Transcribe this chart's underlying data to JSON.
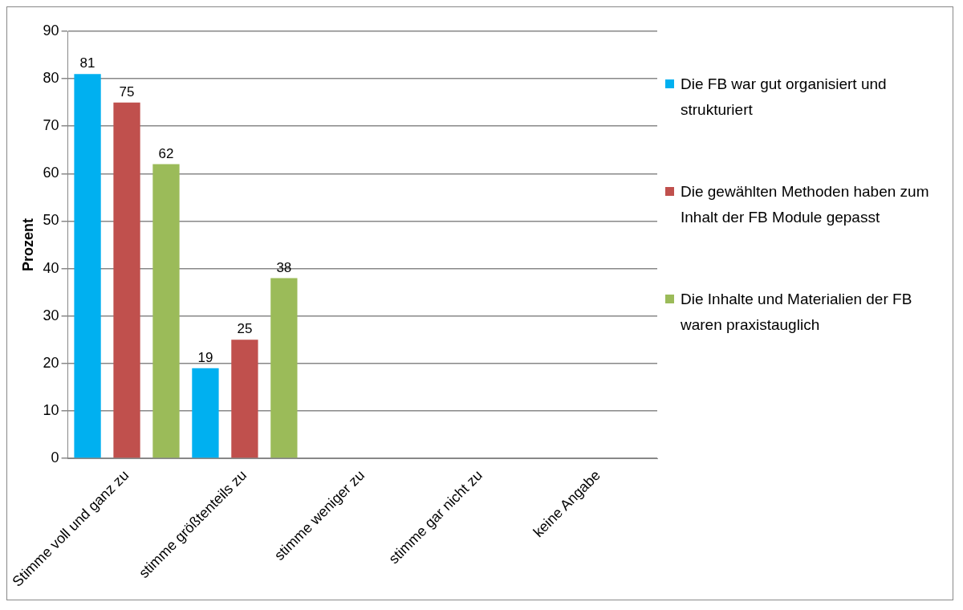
{
  "chart_data": {
    "type": "bar",
    "ylabel": "Prozent",
    "categories": [
      "Stimme voll und ganz zu",
      "stimme größtenteils zu",
      "stimme weniger zu",
      "stimme gar nicht zu",
      "keine Angabe"
    ],
    "series": [
      {
        "name": "Die FB war gut organisiert und strukturiert",
        "color": "#00b0f0",
        "values": [
          81,
          19,
          null,
          null,
          null
        ]
      },
      {
        "name": "Die gewählten Methoden haben zum Inhalt der FB Module gepasst",
        "color": "#c0504d",
        "values": [
          75,
          25,
          null,
          null,
          null
        ]
      },
      {
        "name": "Die Inhalte und Materialien der FB waren praxistauglich",
        "color": "#9bbb59",
        "values": [
          62,
          38,
          null,
          null,
          null
        ]
      }
    ],
    "ylim": [
      0,
      90
    ],
    "yticks": [
      0,
      10,
      20,
      30,
      40,
      50,
      60,
      70,
      80,
      90
    ],
    "grid": "y",
    "legend": "right",
    "data_labels": true
  }
}
